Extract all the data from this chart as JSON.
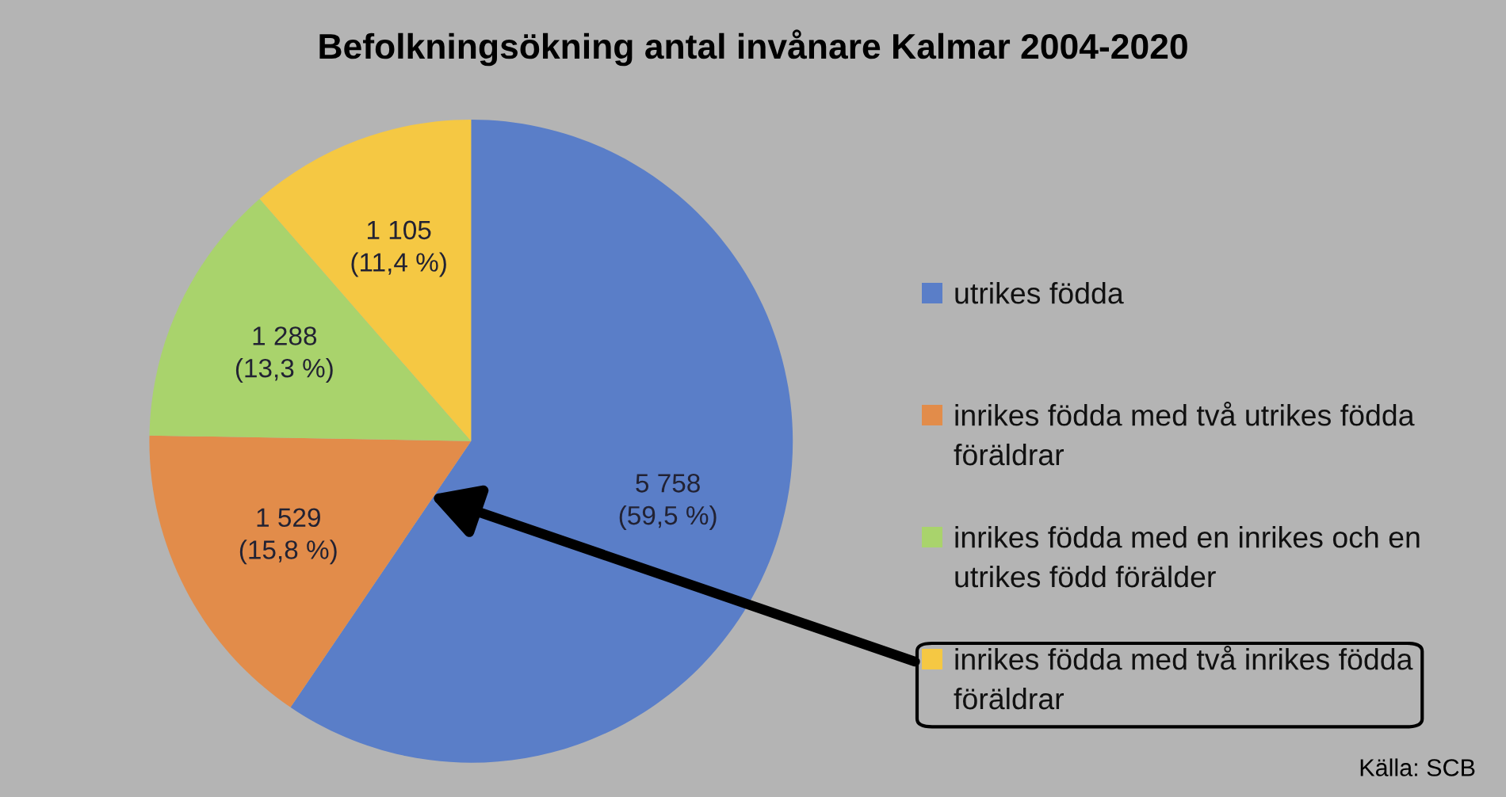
{
  "chart_data": {
    "type": "pie",
    "title": "Befolkningsökning antal invånare Kalmar 2004-2020",
    "categories": [
      "utrikes födda",
      "inrikes födda med två utrikes födda föräldrar",
      "inrikes födda med en inrikes och en utrikes född förälder",
      "inrikes födda med två inrikes födda föräldrar"
    ],
    "values": [
      5758,
      1529,
      1288,
      1105
    ],
    "colors": [
      "#5a7ec8",
      "#e28c4a",
      "#a9d36c",
      "#f5c843"
    ],
    "value_labels": [
      "5 758\n(59,5 %)",
      "1 529\n(15,8 %)",
      "1 288\n(13,3 %)",
      "1 105\n(11,4 %)"
    ],
    "legend": "right",
    "annotations": [
      "Källa: SCB"
    ]
  }
}
